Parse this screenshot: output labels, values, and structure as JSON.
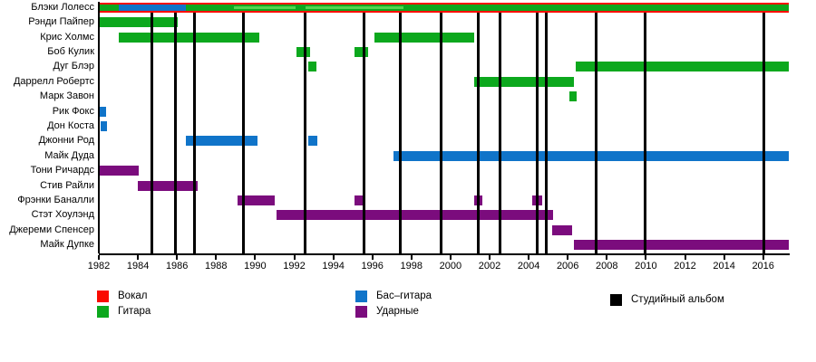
{
  "chart_data": {
    "type": "bar",
    "subtype": "gantt-timeline",
    "title": "",
    "x_axis": {
      "min": 1982,
      "max": 2017.35,
      "tick_step": 2,
      "tick_labels": [
        "1982",
        "1984",
        "1986",
        "1988",
        "1990",
        "1992",
        "1994",
        "1996",
        "1998",
        "2000",
        "2002",
        "2004",
        "2006",
        "2008",
        "2010",
        "2012",
        "2014",
        "2016"
      ]
    },
    "colors": {
      "vocals": "#fa0a00",
      "guitar": "#0ca81d",
      "guitar_light": "#55d450",
      "bass": "#1074c9",
      "drums": "#7b0c7d",
      "album_line": "#000000"
    },
    "members": [
      {
        "name": "Блэки Лолесс",
        "segments": [
          {
            "role": "vocals",
            "from": 1982.05,
            "to": 2017.3,
            "size": "full"
          },
          {
            "role": "guitar",
            "from": 1982.05,
            "to": 2017.3,
            "size": "mid"
          },
          {
            "role": "bass",
            "from": 1983.0,
            "to": 1986.45,
            "size": "mid"
          },
          {
            "role": "guitar_light",
            "from": 1988.9,
            "to": 1992.05,
            "size": "thin"
          },
          {
            "role": "guitar_light",
            "from": 1992.6,
            "to": 1997.6,
            "size": "thin"
          }
        ]
      },
      {
        "name": "Рэнди Пайпер",
        "segments": [
          {
            "role": "guitar",
            "from": 1982.05,
            "to": 1986.05,
            "size": "full"
          }
        ]
      },
      {
        "name": "Крис Холмс",
        "segments": [
          {
            "role": "guitar",
            "from": 1983.0,
            "to": 1990.2,
            "size": "full"
          },
          {
            "role": "guitar",
            "from": 1996.1,
            "to": 2001.2,
            "size": "full"
          }
        ]
      },
      {
        "name": "Боб Кулик",
        "segments": [
          {
            "role": "guitar",
            "from": 1992.1,
            "to": 1992.8,
            "size": "full"
          },
          {
            "role": "guitar",
            "from": 1995.1,
            "to": 1995.8,
            "size": "full"
          }
        ]
      },
      {
        "name": "Дуг Блэр",
        "segments": [
          {
            "role": "guitar",
            "from": 1992.7,
            "to": 1993.15,
            "size": "full"
          },
          {
            "role": "guitar",
            "from": 2006.4,
            "to": 2017.3,
            "size": "full"
          }
        ]
      },
      {
        "name": "Даррелл Робертс",
        "segments": [
          {
            "role": "guitar",
            "from": 2001.2,
            "to": 2006.3,
            "size": "full"
          }
        ]
      },
      {
        "name": "Марк Завон",
        "segments": [
          {
            "role": "guitar",
            "from": 2006.1,
            "to": 2006.45,
            "size": "full"
          }
        ]
      },
      {
        "name": "Рик Фокс",
        "segments": [
          {
            "role": "bass",
            "from": 1982.05,
            "to": 1982.35,
            "size": "full"
          }
        ]
      },
      {
        "name": "Дон Коста",
        "segments": [
          {
            "role": "bass",
            "from": 1982.1,
            "to": 1982.4,
            "size": "full"
          }
        ]
      },
      {
        "name": "Джонни Род",
        "segments": [
          {
            "role": "bass",
            "from": 1986.45,
            "to": 1990.1,
            "size": "full"
          },
          {
            "role": "bass",
            "from": 1992.7,
            "to": 1993.2,
            "size": "full"
          }
        ]
      },
      {
        "name": "Майк Дуда",
        "segments": [
          {
            "role": "bass",
            "from": 1997.1,
            "to": 2017.3,
            "size": "full"
          }
        ]
      },
      {
        "name": "Тони Ричардс",
        "segments": [
          {
            "role": "drums",
            "from": 1982.05,
            "to": 1984.05,
            "size": "full"
          }
        ]
      },
      {
        "name": "Стив Райли",
        "segments": [
          {
            "role": "drums",
            "from": 1984.0,
            "to": 1987.05,
            "size": "full"
          }
        ]
      },
      {
        "name": "Фрэнки Баналли",
        "segments": [
          {
            "role": "drums",
            "from": 1989.1,
            "to": 1991.0,
            "size": "full"
          },
          {
            "role": "drums",
            "from": 1995.1,
            "to": 1995.6,
            "size": "full"
          },
          {
            "role": "drums",
            "from": 2001.2,
            "to": 2001.65,
            "size": "full"
          },
          {
            "role": "drums",
            "from": 2004.2,
            "to": 2004.7,
            "size": "full"
          }
        ]
      },
      {
        "name": "Стэт Хоулэнд",
        "segments": [
          {
            "role": "drums",
            "from": 1991.1,
            "to": 2005.25,
            "size": "full"
          }
        ]
      },
      {
        "name": "Джереми Спенсер",
        "segments": [
          {
            "role": "drums",
            "from": 2005.2,
            "to": 2006.2,
            "size": "full"
          }
        ]
      },
      {
        "name": "Майк Дупке",
        "segments": [
          {
            "role": "drums",
            "from": 2006.3,
            "to": 2017.3,
            "size": "full"
          }
        ]
      }
    ],
    "album_lines": {
      "label": "Студийный альбом",
      "positions": [
        1984.7,
        1985.9,
        1986.9,
        1989.4,
        1992.55,
        1995.55,
        1997.45,
        1999.5,
        2001.4,
        2002.55,
        2004.45,
        2004.9,
        2007.45,
        2009.95,
        2016.05
      ]
    },
    "legend": [
      {
        "label": "Вокал",
        "color_key": "vocals",
        "column": 0,
        "row": 0
      },
      {
        "label": "Гитара",
        "color_key": "guitar",
        "column": 0,
        "row": 1
      },
      {
        "label": "Бас–гитара",
        "color_key": "bass",
        "column": 1,
        "row": 0
      },
      {
        "label": "Ударные",
        "color_key": "drums",
        "column": 1,
        "row": 1
      },
      {
        "label": "Студийный альбом",
        "color_key": "album_line",
        "column": 2,
        "row": 0
      }
    ],
    "legend_position": "bottom"
  }
}
